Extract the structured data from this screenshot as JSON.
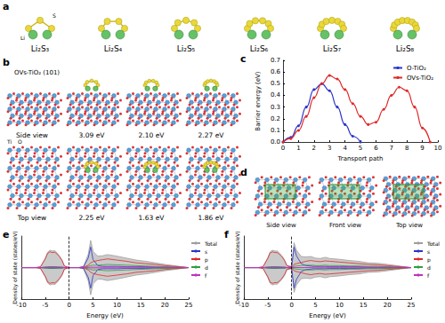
{
  "panel_labels": [
    "a",
    "b",
    "c",
    "d",
    "e",
    "f"
  ],
  "panel_a": {
    "molecules": [
      "Li₂S₃",
      "Li₂S₄",
      "Li₂S₅",
      "Li₂S₆",
      "Li₂S₇",
      "Li₂S₈"
    ],
    "atom_labels": [
      "Li",
      "S"
    ]
  },
  "panel_b": {
    "slab": "OVs-TiO₂ (101)",
    "atom_labels": [
      "Ti",
      "O"
    ],
    "views": [
      "Side view",
      "Top view"
    ],
    "side_view_energies": [
      "3.09 eV",
      "2.10 eV",
      "2.27 eV"
    ],
    "top_view_energies": [
      "2.25 eV",
      "1.63 eV",
      "1.86 eV"
    ]
  },
  "panel_d": {
    "views": [
      "Side view",
      "Front view",
      "Top view"
    ]
  },
  "chart_data": [
    {
      "type": "line",
      "xlabel": "Transport path",
      "ylabel": "Barrier energy (eV)",
      "xlim": [
        0,
        10
      ],
      "xticks": [
        0,
        1,
        2,
        3,
        4,
        5,
        6,
        7,
        8,
        9,
        10
      ],
      "ylim": [
        0,
        0.7
      ],
      "yticks": [
        {
          "value": 0,
          "label": "0.0"
        },
        0.1,
        0.2,
        0.3,
        0.4,
        0.5,
        0.6,
        0.7
      ],
      "grid": false,
      "legend": "upper right",
      "series": [
        {
          "name": "O-TiO₂",
          "color": "#2b35c8",
          "marker": "circle",
          "x": [
            0,
            0.5,
            1,
            1.5,
            2,
            2.5,
            3,
            3.5,
            4,
            4.5,
            5
          ],
          "values": [
            0,
            0.04,
            0.14,
            0.3,
            0.45,
            0.5,
            0.44,
            0.3,
            0.15,
            0.05,
            0
          ]
        },
        {
          "name": "OVs-TiO₂",
          "color": "#e02828",
          "marker": "circle",
          "x": [
            0,
            0.5,
            1,
            1.5,
            2,
            2.5,
            3,
            3.5,
            4,
            4.5,
            5,
            5.5,
            6,
            6.5,
            7,
            7.5,
            8,
            8.5,
            9,
            9.5
          ],
          "values": [
            0,
            0.03,
            0.1,
            0.22,
            0.38,
            0.5,
            0.57,
            0.54,
            0.45,
            0.33,
            0.22,
            0.15,
            0.17,
            0.28,
            0.4,
            0.47,
            0.44,
            0.3,
            0.12,
            0
          ]
        }
      ]
    },
    {
      "type": "line",
      "xlabel": "Energy (eV)",
      "ylabel": "Density of state (states/eV)",
      "xlim": [
        -10,
        25
      ],
      "xticks": [
        -10,
        -5,
        0,
        5,
        10,
        15,
        20,
        25
      ],
      "ylim": [
        -8,
        8
      ],
      "tick_labels": "x",
      "grid": false,
      "legend": "right",
      "fermi_level": 0,
      "x": [
        -10,
        -7,
        -6,
        -5,
        -4.5,
        -4,
        -3.5,
        -3,
        -2.5,
        -2,
        -1.5,
        -1,
        0,
        0.5,
        1,
        2,
        3,
        4,
        4.5,
        5,
        6,
        7,
        8,
        10,
        12,
        14,
        16,
        18,
        20,
        25
      ],
      "series": [
        {
          "name": "Total",
          "type": "area",
          "color": "#9e9e9e",
          "values": [
            0,
            0,
            0.2,
            2.4,
            3.9,
            4.4,
            4.2,
            4.3,
            3.7,
            2.9,
            2.0,
            0.4,
            0,
            0,
            0,
            0,
            0.3,
            3.4,
            6.9,
            4.1,
            2.9,
            3.0,
            3.3,
            2.9,
            2.4,
            1.9,
            1.6,
            1.2,
            0.8,
            0
          ],
          "values_down": [
            0,
            0,
            -0.2,
            -2.4,
            -3.9,
            -4.4,
            -4.2,
            -4.3,
            -3.7,
            -2.9,
            -2.0,
            -0.4,
            0,
            0,
            0,
            0,
            -0.3,
            -3.4,
            -6.9,
            -4.1,
            -2.9,
            -3.0,
            -3.3,
            -2.9,
            -2.4,
            -1.9,
            -1.6,
            -1.2,
            -0.8,
            0
          ]
        },
        {
          "name": "s",
          "color": "#2b35c8",
          "values": [
            0,
            0,
            0,
            0.1,
            0.1,
            0.2,
            0.2,
            0.2,
            0.1,
            0.1,
            0.1,
            0,
            0,
            0,
            0,
            0,
            0.2,
            2.5,
            5.2,
            2.0,
            0.5,
            0.3,
            0.3,
            0.3,
            0.2,
            0.2,
            0.2,
            0.1,
            0.1,
            0
          ],
          "values_down": [
            0,
            0,
            0,
            -0.1,
            -0.1,
            -0.2,
            -0.2,
            -0.2,
            -0.1,
            -0.1,
            -0.1,
            0,
            0,
            0,
            0,
            0,
            -0.2,
            -2.5,
            -5.2,
            -2.0,
            -0.5,
            -0.3,
            -0.3,
            -0.3,
            -0.2,
            -0.2,
            -0.2,
            -0.1,
            -0.1,
            0
          ]
        },
        {
          "name": "p",
          "color": "#e02828",
          "values": [
            0,
            0,
            0.2,
            2.2,
            3.6,
            4.0,
            3.8,
            3.9,
            3.4,
            2.7,
            1.8,
            0.4,
            0,
            0,
            0,
            0,
            0.1,
            0.6,
            1.2,
            1.5,
            1.8,
            2.0,
            2.2,
            1.9,
            1.6,
            1.2,
            1.0,
            0.8,
            0.5,
            0
          ],
          "values_down": [
            0,
            0,
            -0.2,
            -2.2,
            -3.6,
            -4.0,
            -3.8,
            -3.9,
            -3.4,
            -2.7,
            -1.8,
            -0.4,
            0,
            0,
            0,
            0,
            -0.1,
            -0.6,
            -1.2,
            -1.5,
            -1.8,
            -2.0,
            -2.2,
            -1.9,
            -1.6,
            -1.2,
            -1.0,
            -0.8,
            -0.5,
            0
          ]
        },
        {
          "name": "d",
          "color": "#2e9e3e",
          "values": [
            0,
            0,
            0,
            0.1,
            0.2,
            0.2,
            0.2,
            0.2,
            0.2,
            0.1,
            0.1,
            0,
            0,
            0,
            0,
            0,
            0,
            0.3,
            0.5,
            0.6,
            0.6,
            0.7,
            0.8,
            0.7,
            0.6,
            0.5,
            0.4,
            0.3,
            0.2,
            0
          ],
          "values_down": [
            0,
            0,
            0,
            -0.1,
            -0.2,
            -0.2,
            -0.2,
            -0.2,
            -0.2,
            -0.1,
            -0.1,
            0,
            0,
            0,
            0,
            0,
            0,
            -0.3,
            -0.5,
            -0.6,
            -0.6,
            -0.7,
            -0.8,
            -0.7,
            -0.6,
            -0.5,
            -0.4,
            -0.3,
            -0.2,
            0
          ]
        },
        {
          "name": "f",
          "color": "#c030c0",
          "values": [
            0,
            0,
            0,
            0,
            0,
            0.05,
            0.05,
            0.05,
            0,
            0,
            0,
            0,
            0,
            0,
            0,
            0,
            0,
            0.05,
            0.1,
            0.1,
            0.1,
            0.1,
            0.1,
            0.1,
            0.1,
            0.1,
            0.05,
            0.05,
            0,
            0
          ],
          "values_down": [
            0,
            0,
            0,
            0,
            0,
            -0.05,
            -0.05,
            -0.05,
            0,
            0,
            0,
            0,
            0,
            0,
            0,
            0,
            0,
            -0.05,
            -0.1,
            -0.1,
            -0.1,
            -0.1,
            -0.1,
            -0.1,
            -0.1,
            -0.1,
            -0.05,
            -0.05,
            0,
            0
          ]
        }
      ]
    },
    {
      "type": "line",
      "xlabel": "Energy (eV)",
      "ylabel": "Density of state (states/eV)",
      "xlim": [
        -10,
        25
      ],
      "xticks": [
        -10,
        -5,
        0,
        5,
        10,
        15,
        20,
        25
      ],
      "ylim": [
        -8,
        8
      ],
      "tick_labels": "x",
      "grid": false,
      "legend": "right",
      "fermi_level": 0,
      "x": [
        -10,
        -7,
        -6,
        -5,
        -4.5,
        -4,
        -3.5,
        -3,
        -2.5,
        -2,
        -1.5,
        -1,
        0,
        0.5,
        1,
        2,
        3,
        4,
        4.5,
        5,
        6,
        7,
        8,
        10,
        12,
        14,
        16,
        18,
        20,
        25
      ],
      "series": [
        {
          "name": "Total",
          "type": "area",
          "color": "#9e9e9e",
          "values": [
            0,
            0,
            0.2,
            2.5,
            4.0,
            4.4,
            4.2,
            4.2,
            3.6,
            2.9,
            2.0,
            0.5,
            0.3,
            6.3,
            4.4,
            2.8,
            2.7,
            2.8,
            2.6,
            2.4,
            2.3,
            2.6,
            2.3,
            2.1,
            1.8,
            1.6,
            1.2,
            1.1,
            0.8,
            0
          ],
          "values_down": [
            0,
            0,
            -0.2,
            -2.5,
            -4.0,
            -4.4,
            -4.2,
            -4.2,
            -3.6,
            -2.9,
            -2.0,
            -0.5,
            -0.3,
            -6.3,
            -4.4,
            -2.8,
            -2.7,
            -2.8,
            -2.6,
            -2.4,
            -2.3,
            -2.6,
            -2.3,
            -2.1,
            -1.8,
            -1.6,
            -1.2,
            -1.1,
            -0.8,
            0
          ]
        },
        {
          "name": "s",
          "color": "#2b35c8",
          "values": [
            0,
            0,
            0,
            0.1,
            0.1,
            0.2,
            0.2,
            0.2,
            0.1,
            0.1,
            0.1,
            0,
            0.2,
            5.2,
            3.0,
            1.0,
            0.5,
            0.4,
            0.3,
            0.3,
            0.3,
            0.3,
            0.2,
            0.2,
            0.2,
            0.2,
            0.1,
            0.1,
            0.1,
            0
          ],
          "values_down": [
            0,
            0,
            0,
            -0.1,
            -0.1,
            -0.2,
            -0.2,
            -0.2,
            -0.1,
            -0.1,
            -0.1,
            0,
            -0.2,
            -5.2,
            -3.0,
            -1.0,
            -0.5,
            -0.4,
            -0.3,
            -0.3,
            -0.3,
            -0.3,
            -0.2,
            -0.2,
            -0.2,
            -0.2,
            -0.1,
            -0.1,
            -0.1,
            0
          ]
        },
        {
          "name": "p",
          "color": "#e02828",
          "values": [
            0,
            0,
            0.2,
            2.3,
            3.7,
            4.0,
            3.8,
            3.8,
            3.3,
            2.7,
            1.8,
            0.5,
            0.1,
            0.8,
            1.0,
            1.3,
            1.6,
            1.8,
            1.7,
            1.6,
            1.5,
            1.7,
            1.6,
            1.4,
            1.2,
            1.0,
            0.8,
            0.7,
            0.5,
            0
          ],
          "values_down": [
            0,
            0,
            -0.2,
            -2.3,
            -3.7,
            -4.0,
            -3.8,
            -3.8,
            -3.3,
            -2.7,
            -1.8,
            -0.5,
            -0.1,
            -0.8,
            -1.0,
            -1.3,
            -1.6,
            -1.8,
            -1.7,
            -1.6,
            -1.5,
            -1.7,
            -1.6,
            -1.4,
            -1.2,
            -1.0,
            -0.8,
            -0.7,
            -0.5,
            0
          ]
        },
        {
          "name": "d",
          "color": "#2e9e3e",
          "values": [
            0,
            0,
            0,
            0.1,
            0.2,
            0.2,
            0.2,
            0.2,
            0.2,
            0.1,
            0.1,
            0,
            0,
            0.3,
            0.4,
            0.5,
            0.6,
            0.6,
            0.6,
            0.5,
            0.5,
            0.6,
            0.5,
            0.5,
            0.4,
            0.4,
            0.3,
            0.3,
            0.2,
            0
          ],
          "values_down": [
            0,
            0,
            0,
            -0.1,
            -0.2,
            -0.2,
            -0.2,
            -0.2,
            -0.2,
            -0.1,
            -0.1,
            0,
            0,
            -0.3,
            -0.4,
            -0.5,
            -0.6,
            -0.6,
            -0.6,
            -0.5,
            -0.5,
            -0.6,
            -0.5,
            -0.5,
            -0.4,
            -0.4,
            -0.3,
            -0.3,
            -0.2,
            0
          ]
        },
        {
          "name": "f",
          "color": "#c030c0",
          "values": [
            0,
            0,
            0,
            0,
            0,
            0.05,
            0.05,
            0.05,
            0,
            0,
            0,
            0,
            0,
            0.05,
            0,
            0,
            0,
            0.05,
            0.1,
            0.1,
            0.1,
            0.1,
            0.1,
            0.1,
            0.1,
            0.1,
            0.05,
            0.05,
            0,
            0
          ],
          "values_down": [
            0,
            0,
            0,
            0,
            0,
            -0.05,
            -0.05,
            -0.05,
            0,
            0,
            0,
            0,
            0,
            -0.05,
            0,
            0,
            0,
            -0.05,
            -0.1,
            -0.1,
            -0.1,
            -0.1,
            -0.1,
            -0.1,
            -0.1,
            -0.1,
            -0.05,
            -0.05,
            0,
            0
          ]
        }
      ]
    }
  ]
}
